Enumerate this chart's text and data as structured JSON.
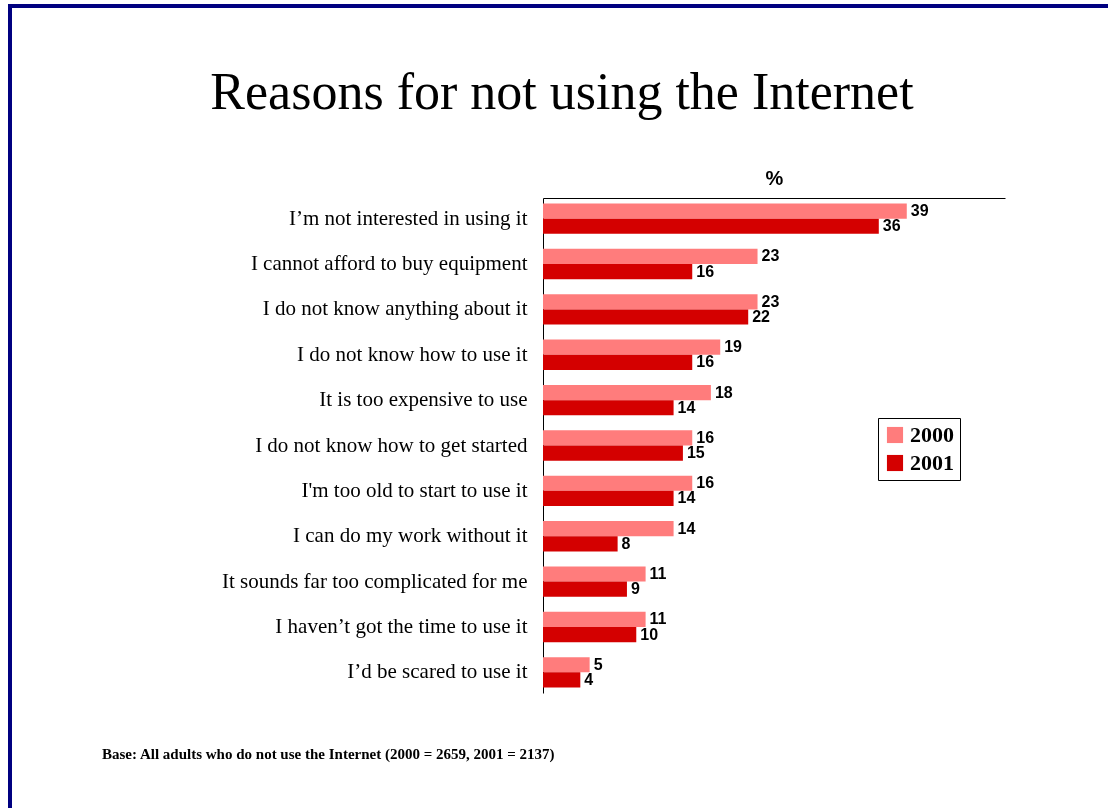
{
  "chart_data": {
    "type": "bar",
    "orientation": "horizontal",
    "title": "Reasons for not using the Internet",
    "xlabel": "%",
    "categories": [
      "I’m not interested in using it",
      "I cannot afford to buy equipment",
      "I do not know anything about it",
      "I do not know how to use it",
      "It is too expensive to use",
      "I do not know how to get started",
      "I'm too old to start to use it",
      "I can do my work without it",
      "It sounds far too complicated for me",
      "I haven’t got the time to use it",
      "I’d be scared to use it"
    ],
    "series": [
      {
        "name": "2000",
        "color": "#ff7c7c",
        "values": [
          39,
          23,
          23,
          19,
          18,
          16,
          16,
          14,
          11,
          11,
          5
        ]
      },
      {
        "name": "2001",
        "color": "#d40000",
        "values": [
          36,
          16,
          22,
          16,
          14,
          15,
          14,
          8,
          9,
          10,
          4
        ]
      }
    ],
    "data_labels": true,
    "legend": "right",
    "annotations": [
      "Base:  All adults who do not use the Internet (2000 = 2659, 2001 = 2137)"
    ]
  }
}
